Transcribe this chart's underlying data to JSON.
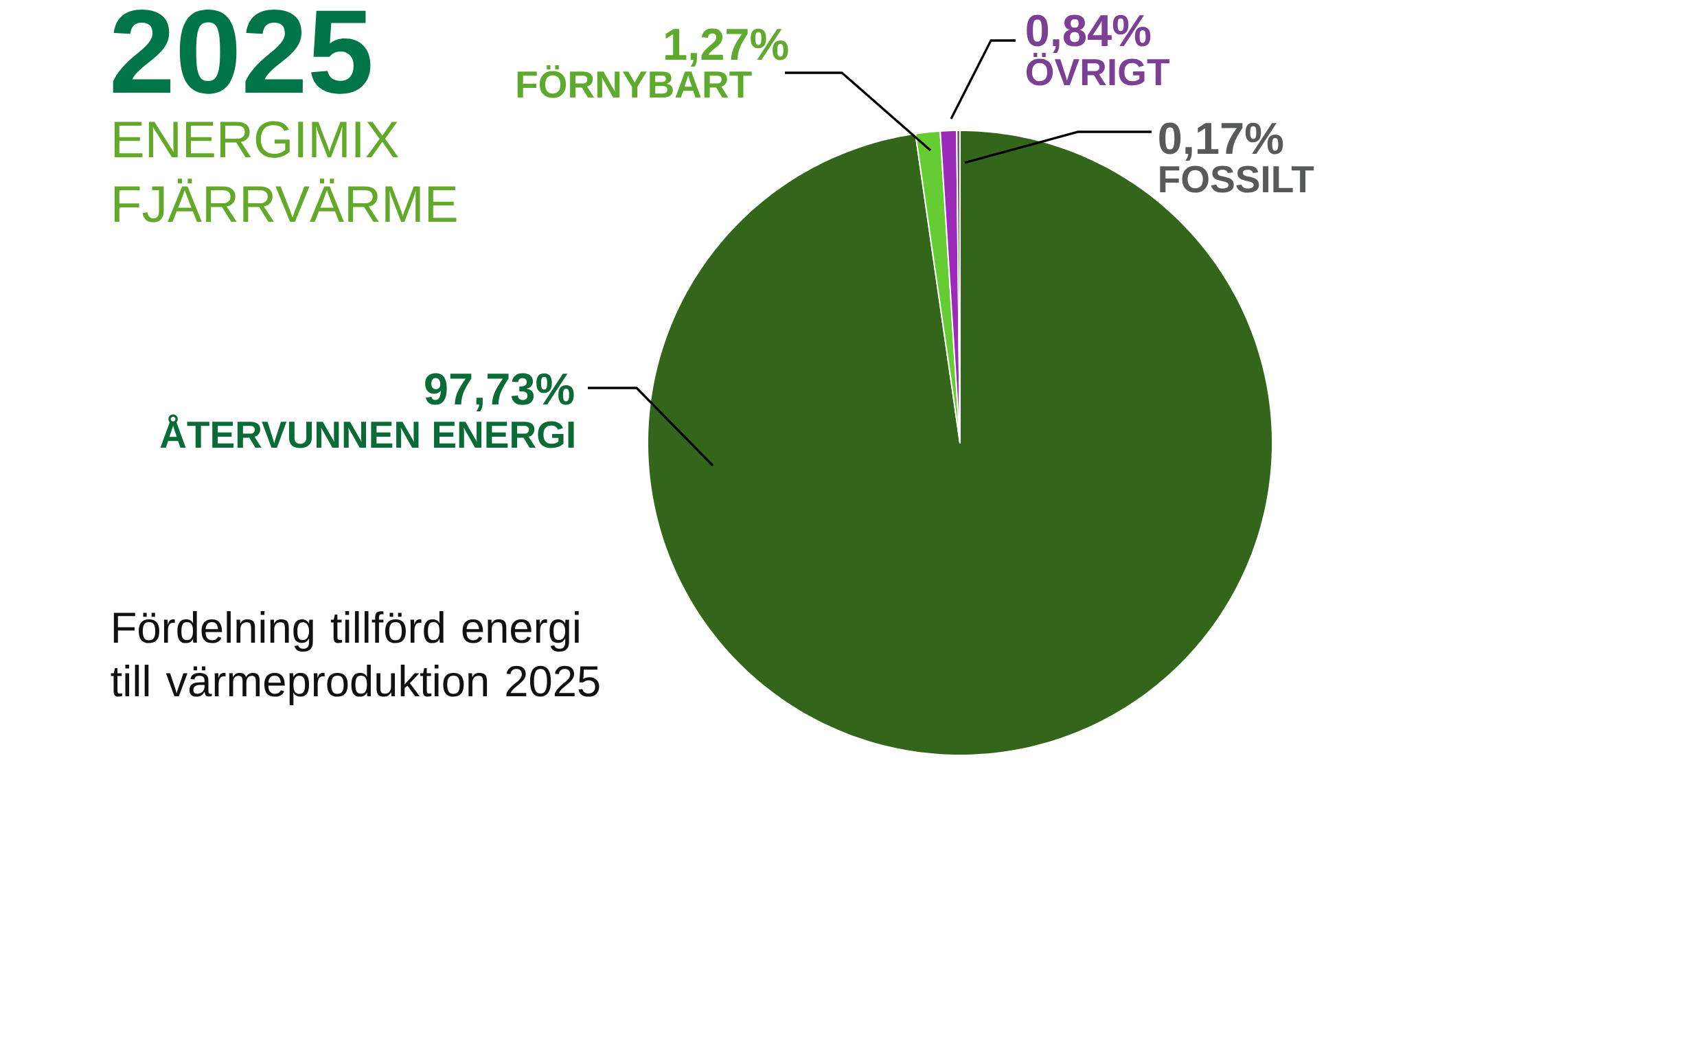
{
  "chart_data": {
    "type": "pie",
    "title": "2025",
    "subtitle": "ENERGIMIX FJÄRRVÄRME",
    "categories": [
      "ÅTERVUNNEN ENERGI",
      "FÖRNYBART",
      "ÖVRIGT",
      "FOSSILT"
    ],
    "values": [
      97.73,
      1.27,
      0.84,
      0.17
    ],
    "value_labels": [
      "97,73%",
      "1,27%",
      "0,84%",
      "0,17%"
    ],
    "colors": [
      "#33661a",
      "#66cc33",
      "#9b2bb8",
      "#666666"
    ],
    "annotations": [
      "Fördelning tillförd energi till värmeproduktion 2025"
    ]
  }
}
